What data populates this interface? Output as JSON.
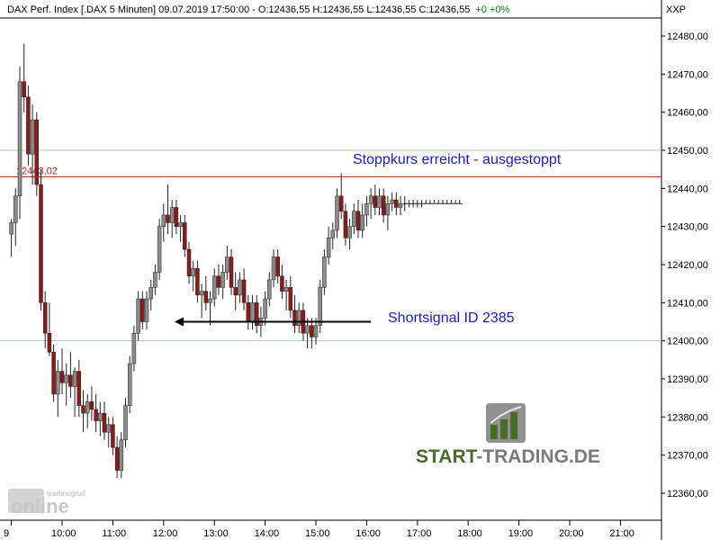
{
  "header": {
    "text": "DAX Perf. Index [.DAX  5 Minuten] 09.07.2019 17:50:00 - O:12436,55 H:12436,55 L:12436,55 C:12436,55",
    "change": "+0 +0%"
  },
  "axis_code": "XXP",
  "annotations": {
    "stop": "Stoppkurs erreicht - ausgestoppt",
    "short": "Shortsignal ID 2385"
  },
  "ref_line_label": "12443,02",
  "watermark": {
    "small": "tradesignal",
    "big": "online"
  },
  "brand": {
    "part1": "START",
    "part2": "-TRADING.DE"
  },
  "colors": {
    "up": "#8c8c8c",
    "down": "#8b1a1a",
    "wick": "#222222",
    "ref_line": "#cc2222",
    "grid": "#a8c8c0",
    "annotation": "#1a1acc",
    "brand_green": "#4a6b2a",
    "brand_grey": "#7a7a7a"
  },
  "chart_data": {
    "type": "candlestick",
    "title": "DAX Perf. Index [.DAX  5 Minuten]",
    "interval_minutes": 5,
    "y_ticks": [
      "12480,00",
      "12470,00",
      "12460,00",
      "12450,00",
      "12440,00",
      "12430,00",
      "12420,00",
      "12410,00",
      "12400,00",
      "12390,00",
      "12380,00",
      "12370,00",
      "12360,00"
    ],
    "ylim": [
      12356,
      12490
    ],
    "x_ticks": [
      "9",
      "10:00",
      "11:00",
      "12:00",
      "13:00",
      "14:00",
      "15:00",
      "16:00",
      "17:00",
      "18:00",
      "19:00",
      "20:00",
      "21:00"
    ],
    "x_tick_times": [
      "09:00",
      "10:00",
      "11:00",
      "12:00",
      "13:00",
      "14:00",
      "15:00",
      "16:00",
      "17:00",
      "18:00",
      "19:00",
      "20:00",
      "21:00"
    ],
    "xlim": [
      "09:00",
      "21:00"
    ],
    "horizontal_lines": [
      {
        "value": 12443.02,
        "label": "12443,02"
      },
      {
        "value": 12450.0
      },
      {
        "value": 12400.0
      }
    ],
    "short_signal_line": {
      "from": "12:15",
      "to": "16:05",
      "value": 12405
    },
    "series": [
      {
        "t": "09:00",
        "o": 12428,
        "h": 12432,
        "l": 12422,
        "c": 12431
      },
      {
        "t": "09:05",
        "o": 12431,
        "h": 12440,
        "l": 12425,
        "c": 12438
      },
      {
        "t": "09:10",
        "o": 12438,
        "h": 12472,
        "l": 12432,
        "c": 12468
      },
      {
        "t": "09:15",
        "o": 12468,
        "h": 12478,
        "l": 12460,
        "c": 12464
      },
      {
        "t": "09:20",
        "o": 12464,
        "h": 12467,
        "l": 12446,
        "c": 12449
      },
      {
        "t": "09:25",
        "o": 12449,
        "h": 12462,
        "l": 12441,
        "c": 12458
      },
      {
        "t": "09:30",
        "o": 12458,
        "h": 12460,
        "l": 12438,
        "c": 12441
      },
      {
        "t": "09:35",
        "o": 12441,
        "h": 12445,
        "l": 12408,
        "c": 12410
      },
      {
        "t": "09:40",
        "o": 12410,
        "h": 12413,
        "l": 12398,
        "c": 12402
      },
      {
        "t": "09:45",
        "o": 12402,
        "h": 12410,
        "l": 12396,
        "c": 12397
      },
      {
        "t": "09:50",
        "o": 12397,
        "h": 12399,
        "l": 12384,
        "c": 12386
      },
      {
        "t": "09:55",
        "o": 12386,
        "h": 12395,
        "l": 12380,
        "c": 12392
      },
      {
        "t": "10:00",
        "o": 12392,
        "h": 12398,
        "l": 12386,
        "c": 12389
      },
      {
        "t": "10:05",
        "o": 12389,
        "h": 12394,
        "l": 12383,
        "c": 12391
      },
      {
        "t": "10:10",
        "o": 12391,
        "h": 12397,
        "l": 12385,
        "c": 12388
      },
      {
        "t": "10:15",
        "o": 12388,
        "h": 12393,
        "l": 12380,
        "c": 12392
      },
      {
        "t": "10:20",
        "o": 12392,
        "h": 12395,
        "l": 12380,
        "c": 12383
      },
      {
        "t": "10:25",
        "o": 12383,
        "h": 12387,
        "l": 12376,
        "c": 12381
      },
      {
        "t": "10:30",
        "o": 12381,
        "h": 12386,
        "l": 12377,
        "c": 12384
      },
      {
        "t": "10:35",
        "o": 12384,
        "h": 12388,
        "l": 12379,
        "c": 12382
      },
      {
        "t": "10:40",
        "o": 12382,
        "h": 12386,
        "l": 12376,
        "c": 12379
      },
      {
        "t": "10:45",
        "o": 12379,
        "h": 12384,
        "l": 12375,
        "c": 12381
      },
      {
        "t": "10:50",
        "o": 12381,
        "h": 12384,
        "l": 12374,
        "c": 12376
      },
      {
        "t": "10:55",
        "o": 12376,
        "h": 12380,
        "l": 12372,
        "c": 12378
      },
      {
        "t": "11:00",
        "o": 12378,
        "h": 12380,
        "l": 12370,
        "c": 12372
      },
      {
        "t": "11:05",
        "o": 12372,
        "h": 12375,
        "l": 12364,
        "c": 12366
      },
      {
        "t": "11:10",
        "o": 12366,
        "h": 12376,
        "l": 12364,
        "c": 12374
      },
      {
        "t": "11:15",
        "o": 12374,
        "h": 12385,
        "l": 12372,
        "c": 12383
      },
      {
        "t": "11:20",
        "o": 12383,
        "h": 12396,
        "l": 12381,
        "c": 12394
      },
      {
        "t": "11:25",
        "o": 12394,
        "h": 12404,
        "l": 12392,
        "c": 12402
      },
      {
        "t": "11:30",
        "o": 12402,
        "h": 12413,
        "l": 12400,
        "c": 12411
      },
      {
        "t": "11:35",
        "o": 12411,
        "h": 12413,
        "l": 12403,
        "c": 12405
      },
      {
        "t": "11:40",
        "o": 12405,
        "h": 12413,
        "l": 12403,
        "c": 12411
      },
      {
        "t": "11:45",
        "o": 12411,
        "h": 12416,
        "l": 12408,
        "c": 12414
      },
      {
        "t": "11:50",
        "o": 12414,
        "h": 12420,
        "l": 12412,
        "c": 12418
      },
      {
        "t": "11:55",
        "o": 12418,
        "h": 12432,
        "l": 12416,
        "c": 12430
      },
      {
        "t": "12:00",
        "o": 12430,
        "h": 12436,
        "l": 12426,
        "c": 12433
      },
      {
        "t": "12:05",
        "o": 12433,
        "h": 12441,
        "l": 12428,
        "c": 12431
      },
      {
        "t": "12:10",
        "o": 12431,
        "h": 12437,
        "l": 12427,
        "c": 12435
      },
      {
        "t": "12:15",
        "o": 12435,
        "h": 12437,
        "l": 12428,
        "c": 12430
      },
      {
        "t": "12:20",
        "o": 12430,
        "h": 12433,
        "l": 12426,
        "c": 12431
      },
      {
        "t": "12:25",
        "o": 12431,
        "h": 12433,
        "l": 12422,
        "c": 12424
      },
      {
        "t": "12:30",
        "o": 12424,
        "h": 12426,
        "l": 12415,
        "c": 12417
      },
      {
        "t": "12:35",
        "o": 12417,
        "h": 12421,
        "l": 12413,
        "c": 12419
      },
      {
        "t": "12:40",
        "o": 12419,
        "h": 12421,
        "l": 12410,
        "c": 12412
      },
      {
        "t": "12:45",
        "o": 12412,
        "h": 12415,
        "l": 12406,
        "c": 12413
      },
      {
        "t": "12:50",
        "o": 12413,
        "h": 12417,
        "l": 12408,
        "c": 12410
      },
      {
        "t": "12:55",
        "o": 12410,
        "h": 12413,
        "l": 12404,
        "c": 12411
      },
      {
        "t": "13:00",
        "o": 12411,
        "h": 12419,
        "l": 12409,
        "c": 12417
      },
      {
        "t": "13:05",
        "o": 12417,
        "h": 12420,
        "l": 12412,
        "c": 12414
      },
      {
        "t": "13:10",
        "o": 12414,
        "h": 12420,
        "l": 12411,
        "c": 12418
      },
      {
        "t": "13:15",
        "o": 12418,
        "h": 12425,
        "l": 12416,
        "c": 12422
      },
      {
        "t": "13:20",
        "o": 12422,
        "h": 12424,
        "l": 12412,
        "c": 12414
      },
      {
        "t": "13:25",
        "o": 12414,
        "h": 12418,
        "l": 12408,
        "c": 12412
      },
      {
        "t": "13:30",
        "o": 12412,
        "h": 12418,
        "l": 12410,
        "c": 12416
      },
      {
        "t": "13:35",
        "o": 12416,
        "h": 12419,
        "l": 12408,
        "c": 12410
      },
      {
        "t": "13:40",
        "o": 12410,
        "h": 12412,
        "l": 12403,
        "c": 12405
      },
      {
        "t": "13:45",
        "o": 12405,
        "h": 12412,
        "l": 12403,
        "c": 12410
      },
      {
        "t": "13:50",
        "o": 12410,
        "h": 12412,
        "l": 12402,
        "c": 12404
      },
      {
        "t": "13:55",
        "o": 12404,
        "h": 12409,
        "l": 12401,
        "c": 12406
      },
      {
        "t": "14:00",
        "o": 12406,
        "h": 12413,
        "l": 12404,
        "c": 12411
      },
      {
        "t": "14:05",
        "o": 12411,
        "h": 12418,
        "l": 12409,
        "c": 12416
      },
      {
        "t": "14:10",
        "o": 12416,
        "h": 12424,
        "l": 12414,
        "c": 12422
      },
      {
        "t": "14:15",
        "o": 12422,
        "h": 12424,
        "l": 12415,
        "c": 12417
      },
      {
        "t": "14:20",
        "o": 12417,
        "h": 12420,
        "l": 12411,
        "c": 12413
      },
      {
        "t": "14:25",
        "o": 12413,
        "h": 12416,
        "l": 12408,
        "c": 12414
      },
      {
        "t": "14:30",
        "o": 12414,
        "h": 12417,
        "l": 12406,
        "c": 12408
      },
      {
        "t": "14:35",
        "o": 12408,
        "h": 12412,
        "l": 12402,
        "c": 12404
      },
      {
        "t": "14:40",
        "o": 12404,
        "h": 12410,
        "l": 12402,
        "c": 12408
      },
      {
        "t": "14:45",
        "o": 12408,
        "h": 12410,
        "l": 12400,
        "c": 12402
      },
      {
        "t": "14:50",
        "o": 12402,
        "h": 12406,
        "l": 12398,
        "c": 12404
      },
      {
        "t": "14:55",
        "o": 12404,
        "h": 12406,
        "l": 12398,
        "c": 12401
      },
      {
        "t": "15:00",
        "o": 12401,
        "h": 12406,
        "l": 12399,
        "c": 12404
      },
      {
        "t": "15:05",
        "o": 12404,
        "h": 12416,
        "l": 12402,
        "c": 12414
      },
      {
        "t": "15:10",
        "o": 12414,
        "h": 12424,
        "l": 12412,
        "c": 12422
      },
      {
        "t": "15:15",
        "o": 12422,
        "h": 12430,
        "l": 12420,
        "c": 12427
      },
      {
        "t": "15:20",
        "o": 12427,
        "h": 12431,
        "l": 12424,
        "c": 12429
      },
      {
        "t": "15:25",
        "o": 12429,
        "h": 12440,
        "l": 12427,
        "c": 12438
      },
      {
        "t": "15:30",
        "o": 12438,
        "h": 12444,
        "l": 12432,
        "c": 12434
      },
      {
        "t": "15:35",
        "o": 12434,
        "h": 12436,
        "l": 12425,
        "c": 12427
      },
      {
        "t": "15:40",
        "o": 12427,
        "h": 12432,
        "l": 12424,
        "c": 12430
      },
      {
        "t": "15:45",
        "o": 12430,
        "h": 12436,
        "l": 12428,
        "c": 12434
      },
      {
        "t": "15:50",
        "o": 12434,
        "h": 12437,
        "l": 12427,
        "c": 12429
      },
      {
        "t": "15:55",
        "o": 12429,
        "h": 12436,
        "l": 12427,
        "c": 12433
      },
      {
        "t": "16:00",
        "o": 12433,
        "h": 12438,
        "l": 12430,
        "c": 12436
      },
      {
        "t": "16:05",
        "o": 12436,
        "h": 12440,
        "l": 12432,
        "c": 12438
      },
      {
        "t": "16:10",
        "o": 12438,
        "h": 12441,
        "l": 12433,
        "c": 12435
      },
      {
        "t": "16:15",
        "o": 12435,
        "h": 12440,
        "l": 12433,
        "c": 12438
      },
      {
        "t": "16:20",
        "o": 12438,
        "h": 12440,
        "l": 12431,
        "c": 12433
      },
      {
        "t": "16:25",
        "o": 12433,
        "h": 12438,
        "l": 12429,
        "c": 12436
      },
      {
        "t": "16:30",
        "o": 12436,
        "h": 12439,
        "l": 12434,
        "c": 12437
      },
      {
        "t": "16:35",
        "o": 12437,
        "h": 12439,
        "l": 12433,
        "c": 12435
      },
      {
        "t": "16:40",
        "o": 12435,
        "h": 12438,
        "l": 12433,
        "c": 12436
      },
      {
        "t": "16:45",
        "o": 12436,
        "h": 12438,
        "l": 12434,
        "c": 12436
      },
      {
        "t": "16:50",
        "o": 12436,
        "h": 12437,
        "l": 12435,
        "c": 12436
      },
      {
        "t": "16:55",
        "o": 12436,
        "h": 12437,
        "l": 12435,
        "c": 12436
      },
      {
        "t": "17:00",
        "o": 12436,
        "h": 12437,
        "l": 12435,
        "c": 12436
      },
      {
        "t": "17:05",
        "o": 12436,
        "h": 12437,
        "l": 12435,
        "c": 12436
      },
      {
        "t": "17:10",
        "o": 12436,
        "h": 12437,
        "l": 12436,
        "c": 12436
      },
      {
        "t": "17:15",
        "o": 12436,
        "h": 12437,
        "l": 12436,
        "c": 12436
      },
      {
        "t": "17:20",
        "o": 12436,
        "h": 12437,
        "l": 12436,
        "c": 12436
      },
      {
        "t": "17:25",
        "o": 12436,
        "h": 12437,
        "l": 12436,
        "c": 12436
      },
      {
        "t": "17:30",
        "o": 12436,
        "h": 12437,
        "l": 12436,
        "c": 12436
      },
      {
        "t": "17:35",
        "o": 12436,
        "h": 12437,
        "l": 12436,
        "c": 12436
      },
      {
        "t": "17:40",
        "o": 12436,
        "h": 12437,
        "l": 12436,
        "c": 12436
      },
      {
        "t": "17:45",
        "o": 12436,
        "h": 12437,
        "l": 12436,
        "c": 12436
      },
      {
        "t": "17:50",
        "o": 12436,
        "h": 12437,
        "l": 12436,
        "c": 12436
      }
    ]
  }
}
